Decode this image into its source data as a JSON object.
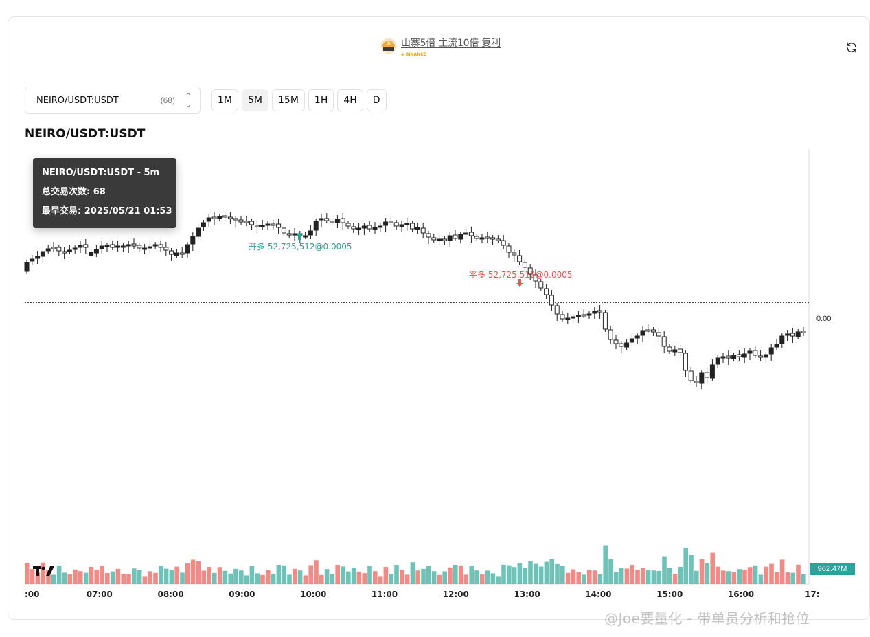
{
  "brand": {
    "title": "山寨5倍 主流10倍 复利",
    "exchange": "BINANCE"
  },
  "symbol_select": {
    "value": "NEIRO/USDT:USDT",
    "count": "(68)"
  },
  "intervals": [
    {
      "label": "1M",
      "active": false
    },
    {
      "label": "5M",
      "active": true
    },
    {
      "label": "15M",
      "active": false
    },
    {
      "label": "1H",
      "active": false
    },
    {
      "label": "4H",
      "active": false
    },
    {
      "label": "D",
      "active": false
    }
  ],
  "chart_title": "NEIRO/USDT:USDT",
  "tooltip": {
    "line1": "NEIRO/USDT:USDT - 5m",
    "line2": "总交易次数: 68",
    "line3": "最早交易: 2025/05/21 01:53"
  },
  "price_axis_label": "0.00",
  "volume_label": "962.47M",
  "watermark": "@Joe要量化 - 带单员分析和抢位",
  "colors": {
    "up_volume": "#6cc3b8",
    "down_volume": "#f28a85",
    "long_marker": "#26a69a",
    "close_marker": "#ef5350",
    "candle_down": "#222222"
  },
  "chart_data": {
    "type": "candlestick",
    "interval": "5m",
    "x_tick_labels": [
      ":00",
      "07:00",
      "08:00",
      "09:00",
      "10:00",
      "11:00",
      "12:00",
      "13:00",
      "14:00",
      "15:00",
      "16:00",
      "17:"
    ],
    "candles_per_hour": 12,
    "first_candle_time": "05:55",
    "closes": [
      395,
      380,
      376,
      373,
      365,
      360,
      360,
      366,
      366,
      363,
      360,
      356,
      372,
      368,
      362,
      357,
      356,
      360,
      358,
      358,
      355,
      357,
      362,
      360,
      358,
      356,
      360,
      365,
      372,
      368,
      368,
      355,
      344,
      330,
      322,
      316,
      318,
      314,
      316,
      318,
      320,
      322,
      322,
      328,
      330,
      328,
      326,
      326,
      332,
      340,
      342,
      340,
      344,
      342,
      335,
      320,
      318,
      322,
      324,
      318,
      325,
      330,
      334,
      332,
      328,
      334,
      330,
      328,
      322,
      324,
      330,
      326,
      325,
      334,
      332,
      340,
      346,
      350,
      348,
      350,
      342,
      348,
      340,
      338,
      344,
      348,
      345,
      346,
      348,
      350,
      358,
      368,
      372,
      382,
      390,
      400,
      410,
      420,
      430,
      445,
      458,
      465,
      462,
      460,
      458,
      458,
      456,
      452,
      455,
      480,
      495,
      500,
      505,
      498,
      492,
      488,
      480,
      480,
      484,
      490,
      505,
      512,
      508,
      514,
      540,
      555,
      558,
      542,
      550,
      530,
      520,
      518,
      522,
      516,
      520,
      514,
      510,
      518,
      520,
      515,
      505,
      500,
      488,
      485,
      490,
      482,
      484,
      480,
      476,
      474,
      468
    ],
    "opens": [
      382,
      377,
      373,
      366,
      362,
      361,
      365,
      367,
      364,
      361,
      357,
      360,
      367,
      363,
      358,
      357,
      360,
      358,
      358,
      356,
      358,
      361,
      361,
      359,
      356,
      360,
      364,
      370,
      368,
      369,
      356,
      344,
      332,
      324,
      317,
      318,
      315,
      316,
      318,
      320,
      323,
      323,
      327,
      329,
      328,
      326,
      327,
      331,
      339,
      341,
      340,
      343,
      343,
      336,
      322,
      318,
      321,
      323,
      319,
      324,
      329,
      333,
      332,
      329,
      333,
      331,
      329,
      323,
      323,
      329,
      327,
      325,
      333,
      331,
      339,
      345,
      349,
      348,
      349,
      343,
      347,
      341,
      339,
      343,
      347,
      346,
      346,
      347,
      349,
      357,
      367,
      371,
      381,
      389,
      399,
      409,
      419,
      429,
      444,
      457,
      464,
      463,
      461,
      459,
      459,
      457,
      453,
      454,
      479,
      494,
      500,
      504,
      499,
      493,
      489,
      481,
      481,
      483,
      489,
      504,
      511,
      509,
      513,
      539,
      554,
      557,
      543,
      549,
      531,
      521,
      519,
      521,
      517,
      519,
      515,
      511,
      517,
      519,
      516,
      506,
      501,
      489,
      486,
      489,
      483,
      483,
      481,
      477,
      475,
      469,
      466
    ]
  },
  "trade_markers": [
    {
      "type": "long_open",
      "label": "开多 52,725,512@0.0005"
    },
    {
      "type": "long_close",
      "label": "平多 52,725,512@0.0005"
    }
  ]
}
